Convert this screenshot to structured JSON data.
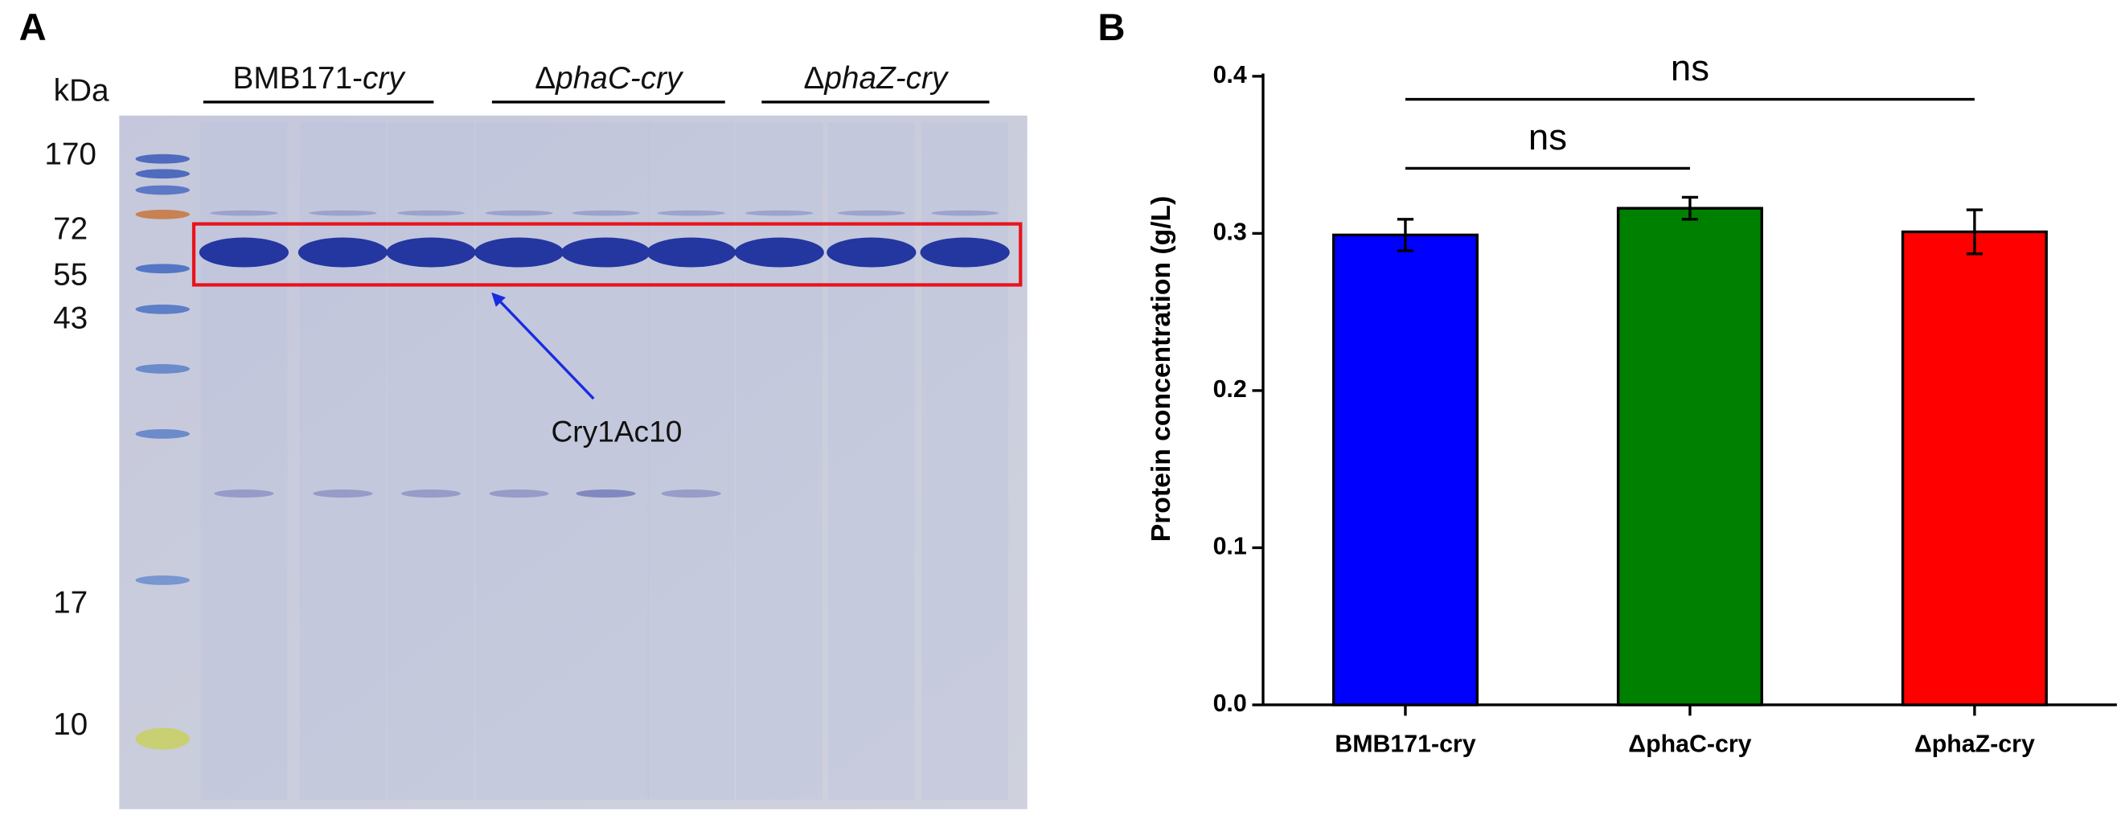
{
  "panel_a": {
    "label": "A",
    "unit": "kDa",
    "markers": [
      "170",
      "72",
      "55",
      "43",
      "17",
      "10"
    ],
    "lane_groups": [
      {
        "text": "BMB171-",
        "italic": "cry"
      },
      {
        "text": "Δ",
        "italic": "phaC-cry"
      },
      {
        "text": "Δ",
        "italic": "phaZ-cry"
      }
    ],
    "annotation": "Cry1Ac10"
  },
  "chart_data": {
    "type": "bar",
    "panel_label": "B",
    "y_label": "Protein concentration (g/L)",
    "categories": [
      "BMB171-cry",
      "ΔphaC-cry",
      "ΔphaZ-cry"
    ],
    "values": [
      0.299,
      0.316,
      0.301
    ],
    "errors": [
      0.01,
      0.007,
      0.014
    ],
    "colors": [
      "#0000ff",
      "#008000",
      "#ff0000"
    ],
    "ylim": [
      0,
      0.4
    ],
    "yticks": [
      {
        "value": 0,
        "label": "0.0"
      },
      0.1,
      0.2,
      0.3,
      0.4
    ],
    "annotations": [
      "ns",
      "ns"
    ]
  }
}
